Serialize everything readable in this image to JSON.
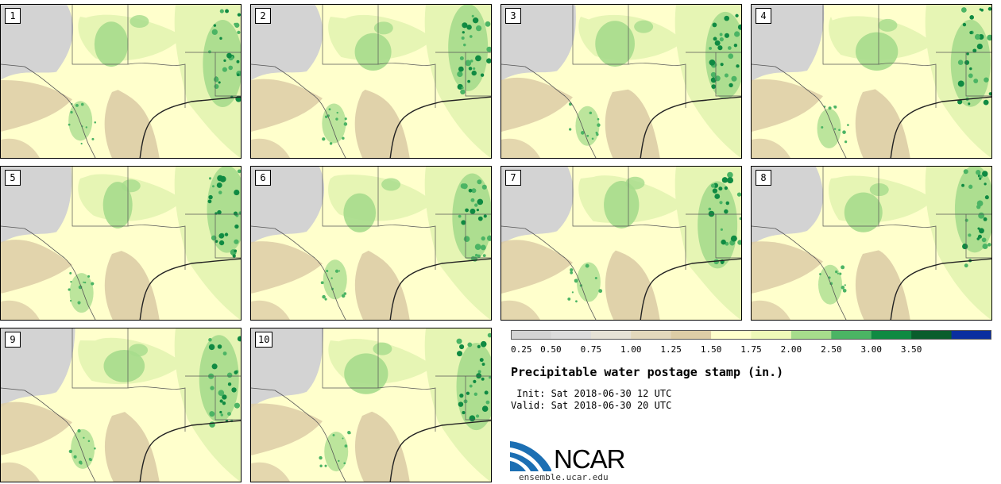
{
  "panels": [
    {
      "label": "1"
    },
    {
      "label": "2"
    },
    {
      "label": "3"
    },
    {
      "label": "4"
    },
    {
      "label": "5"
    },
    {
      "label": "6"
    },
    {
      "label": "7"
    },
    {
      "label": "8"
    },
    {
      "label": "9"
    },
    {
      "label": "10"
    }
  ],
  "colorbar": {
    "ticks": [
      "0.25",
      "0.50",
      "0.75",
      "1.00",
      "1.25",
      "1.50",
      "1.75",
      "2.00",
      "2.50",
      "3.00",
      "3.50"
    ],
    "colors": [
      "#d4d4d4",
      "#dcdcdc",
      "#e6e2d6",
      "#e3d8bc",
      "#ddcda6",
      "#ffffcc",
      "#eef9b8",
      "#a6dc8c",
      "#4bb464",
      "#0f8a42",
      "#0a5d2c",
      "#0a2ea0"
    ]
  },
  "title": "Precipitable water postage stamp (in.)",
  "init": " Init: Sat 2018-06-30 12 UTC",
  "valid": "Valid: Sat 2018-06-30 20 UTC",
  "logo": {
    "text": "NCAR",
    "url": "ensemble.ucar.edu"
  },
  "colors": {
    "gray": "#d3d3d3",
    "tan": "#ddcda6",
    "cream": "#ffffcc",
    "lightgreen": "#e6f5b4",
    "green": "#a6dc8c",
    "darkgreen": "#4bb464",
    "deepgreen": "#0f8a42",
    "logo_blue": "#1c6fb3"
  }
}
